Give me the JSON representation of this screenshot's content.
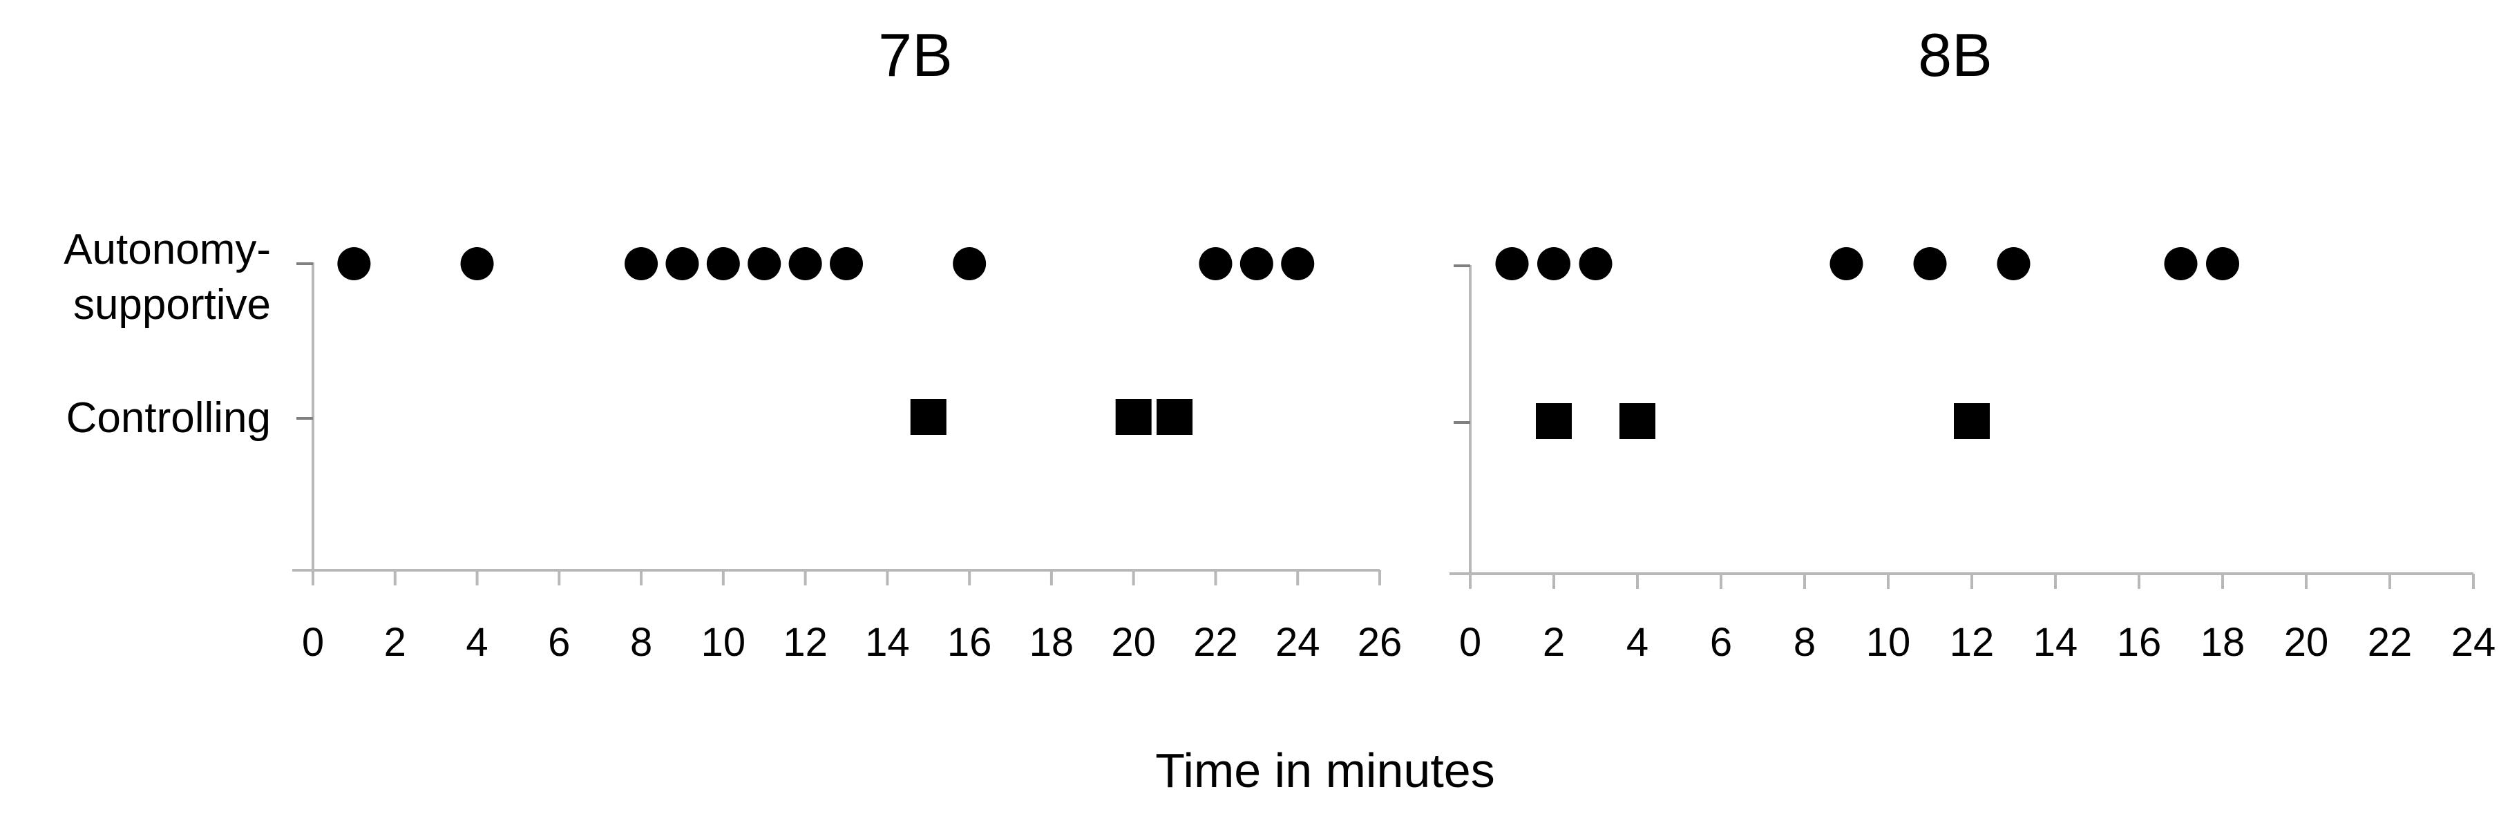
{
  "chart_data": [
    {
      "type": "scatter",
      "title": "7B",
      "categories": [
        "Autonomy-supportive",
        "Controlling"
      ],
      "category_label_lines": [
        [
          "Autonomy-",
          "supportive"
        ],
        [
          "Controlling"
        ]
      ],
      "xlim": [
        0,
        26
      ],
      "xticks": [
        0,
        2,
        4,
        6,
        8,
        10,
        12,
        14,
        16,
        18,
        20,
        22,
        24,
        26
      ],
      "grid": false,
      "series": [
        {
          "category": "Autonomy-supportive",
          "marker": "circle",
          "x": [
            1,
            4,
            8,
            9,
            10,
            11,
            12,
            13,
            16,
            22,
            23,
            24
          ]
        },
        {
          "category": "Controlling",
          "marker": "square",
          "x": [
            15,
            20,
            21
          ]
        }
      ]
    },
    {
      "type": "scatter",
      "title": "8B",
      "categories": [
        "Autonomy-supportive",
        "Controlling"
      ],
      "xlim": [
        0,
        24
      ],
      "xticks": [
        0,
        2,
        4,
        6,
        8,
        10,
        12,
        14,
        16,
        18,
        20,
        22,
        24
      ],
      "grid": false,
      "series": [
        {
          "category": "Autonomy-supportive",
          "marker": "circle",
          "x": [
            1,
            2,
            3,
            9,
            11,
            13,
            17,
            18
          ]
        },
        {
          "category": "Controlling",
          "marker": "square",
          "x": [
            2,
            4,
            12
          ]
        }
      ]
    }
  ],
  "shared_xlabel": "Time in minutes",
  "colors": {
    "marker": "#000000",
    "axis": "#b8b8b8",
    "tick": "#808080"
  }
}
